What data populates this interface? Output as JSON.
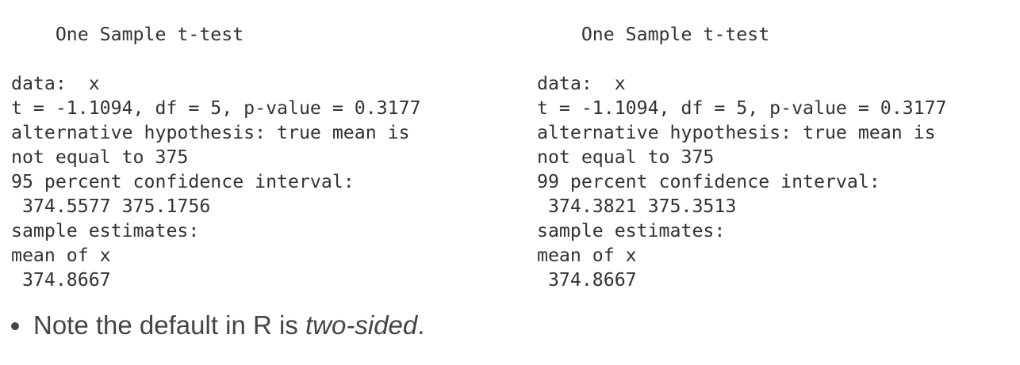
{
  "left_output": {
    "lines": [
      "    One Sample t-test",
      "",
      "data:  x",
      "t = -1.1094, df = 5, p-value = 0.3177",
      "alternative hypothesis: true mean is",
      "not equal to 375",
      "95 percent confidence interval:",
      " 374.5577 375.1756",
      "sample estimates:",
      "mean of x",
      " 374.8667"
    ]
  },
  "right_output": {
    "lines": [
      "    One Sample t-test",
      "",
      "data:  x",
      "t = -1.1094, df = 5, p-value = 0.3177",
      "alternative hypothesis: true mean is",
      "not equal to 375",
      "99 percent confidence interval:",
      " 374.3821 375.3513",
      "sample estimates:",
      "mean of x",
      " 374.8667"
    ]
  },
  "note": {
    "prefix": "Note the default in R is ",
    "emphasis": "two-sided",
    "suffix": "."
  }
}
